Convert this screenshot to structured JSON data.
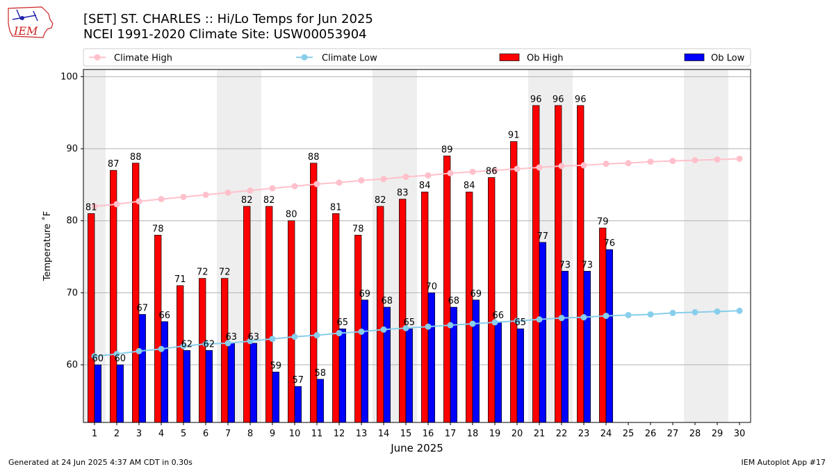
{
  "header": {
    "logo_text": "IEM",
    "title_line1": "[SET] ST. CHARLES :: Hi/Lo Temps for Jun 2025",
    "title_line2": "NCEI 1991-2020 Climate Site: USW00053904"
  },
  "footer": {
    "generated": "Generated at 24 Jun 2025 4:37 AM CDT in 0.30s",
    "app": "IEM Autoplot App #17"
  },
  "colors": {
    "ob_high": "#ff0000",
    "ob_low": "#0000ff",
    "climate_high": "#ffc0cb",
    "climate_low": "#87ceeb",
    "weekend_band": "#eeeeee",
    "grid": "#b0b0b0"
  },
  "chart_data": {
    "type": "bar",
    "title": "[SET] ST. CHARLES :: Hi/Lo Temps for Jun 2025",
    "subtitle": "NCEI 1991-2020 Climate Site: USW00053904",
    "xlabel": "June 2025",
    "ylabel": "Temperature $^\\circ$F",
    "ylabel_display": "Temperature ˚F",
    "ylim": [
      52,
      101
    ],
    "y_ticks": [
      60,
      70,
      80,
      90,
      100
    ],
    "x_ticks": [
      1,
      2,
      3,
      4,
      5,
      6,
      7,
      8,
      9,
      10,
      11,
      12,
      13,
      14,
      15,
      16,
      17,
      18,
      19,
      20,
      21,
      22,
      23,
      24,
      25,
      26,
      27,
      28,
      29,
      30
    ],
    "grid": true,
    "legend_position": "top",
    "weekend_days": [
      1,
      7,
      8,
      14,
      15,
      21,
      22,
      28,
      29
    ],
    "days": [
      1,
      2,
      3,
      4,
      5,
      6,
      7,
      8,
      9,
      10,
      11,
      12,
      13,
      14,
      15,
      16,
      17,
      18,
      19,
      20,
      21,
      22,
      23,
      24,
      25,
      26,
      27,
      28,
      29,
      30
    ],
    "series": [
      {
        "name": "Climate High",
        "kind": "line",
        "values": [
          82.0,
          82.3,
          82.7,
          83.0,
          83.3,
          83.6,
          83.9,
          84.2,
          84.5,
          84.8,
          85.1,
          85.3,
          85.6,
          85.8,
          86.1,
          86.3,
          86.6,
          86.8,
          87.0,
          87.2,
          87.4,
          87.6,
          87.7,
          87.9,
          88.0,
          88.2,
          88.3,
          88.4,
          88.5,
          88.6
        ]
      },
      {
        "name": "Climate Low",
        "kind": "line",
        "values": [
          61.2,
          61.5,
          61.9,
          62.2,
          62.6,
          62.9,
          63.0,
          63.3,
          63.6,
          63.9,
          64.1,
          64.4,
          64.6,
          64.9,
          65.1,
          65.3,
          65.5,
          65.7,
          65.9,
          66.1,
          66.3,
          66.5,
          66.6,
          66.8,
          66.9,
          67.0,
          67.2,
          67.3,
          67.4,
          67.5
        ]
      },
      {
        "name": "Ob High",
        "kind": "bar",
        "values": [
          81,
          87,
          88,
          78,
          71,
          72,
          72,
          82,
          82,
          80,
          88,
          81,
          78,
          82,
          83,
          84,
          89,
          84,
          86,
          91,
          96,
          96,
          96,
          79
        ]
      },
      {
        "name": "Ob Low",
        "kind": "bar",
        "values": [
          60,
          60,
          67,
          66,
          62,
          62,
          63,
          63,
          59,
          57,
          58,
          65,
          69,
          68,
          65,
          70,
          68,
          69,
          66,
          65,
          77,
          73,
          73,
          76
        ]
      }
    ]
  }
}
